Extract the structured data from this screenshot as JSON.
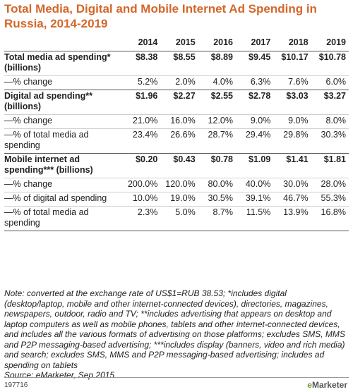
{
  "title": "Total Media, Digital and Mobile Internet Ad Spending in Russia, 2014-2019",
  "chart_data": {
    "type": "table",
    "title": "Total Media, Digital and Mobile Internet Ad Spending in Russia, 2014-2019",
    "columns": [
      "2014",
      "2015",
      "2016",
      "2017",
      "2018",
      "2019"
    ],
    "rows": [
      {
        "label": "Total media ad spending* (billions)",
        "values": [
          "$8.38",
          "$8.55",
          "$8.89",
          "$9.45",
          "$10.17",
          "$10.78"
        ]
      },
      {
        "label": "—% change",
        "values": [
          "5.2%",
          "2.0%",
          "4.0%",
          "6.3%",
          "7.6%",
          "6.0%"
        ]
      },
      {
        "label": "Digital ad spending** (billions)",
        "values": [
          "$1.96",
          "$2.27",
          "$2.55",
          "$2.78",
          "$3.03",
          "$3.27"
        ]
      },
      {
        "label": "—% change",
        "values": [
          "21.0%",
          "16.0%",
          "12.0%",
          "9.0%",
          "9.0%",
          "8.0%"
        ]
      },
      {
        "label": "—% of total media ad spending",
        "values": [
          "23.4%",
          "26.6%",
          "28.7%",
          "29.4%",
          "29.8%",
          "30.3%"
        ]
      },
      {
        "label": "Mobile internet ad spending*** (billions)",
        "values": [
          "$0.20",
          "$0.43",
          "$0.78",
          "$1.09",
          "$1.41",
          "$1.81"
        ]
      },
      {
        "label": "—% change",
        "values": [
          "200.0%",
          "120.0%",
          "80.0%",
          "40.0%",
          "30.0%",
          "28.0%"
        ]
      },
      {
        "label": "—% of digital ad spending",
        "values": [
          "10.0%",
          "19.0%",
          "30.5%",
          "39.1%",
          "46.7%",
          "55.3%"
        ]
      },
      {
        "label": "—% of total media ad spending",
        "values": [
          "2.3%",
          "5.0%",
          "8.7%",
          "11.5%",
          "13.9%",
          "16.8%"
        ]
      }
    ]
  },
  "note": "Note: converted at the exchange rate of US$1=RUB 38.53; *includes digital (desktop/laptop, mobile and other internet-connected devices), directories, magazines, newspapers, outdoor, radio and TV; **includes advertising that appears on desktop and laptop computers as well as mobile phones, tablets and other internet-connected devices, and includes all the various formats of advertising on those platforms; excludes SMS, MMS and P2P messaging-based advertising; ***includes display (banners, video and rich media) and search; excludes SMS, MMS and P2P messaging-based advertising; includes ad spending on tablets",
  "source": "Source: eMarketer, Sep 2015",
  "footer_id": "197716",
  "brand": {
    "prefix": "e",
    "name": "Marketer"
  }
}
